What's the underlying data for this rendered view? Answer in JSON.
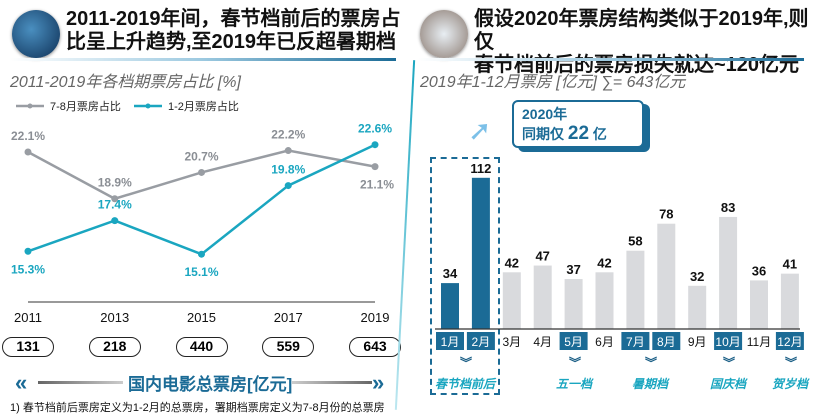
{
  "left": {
    "title_line1": "2011-2019年间，春节档前后的票房占",
    "title_line2": "比呈上升趋势,至2019年已反超暑期档",
    "subtitle": "2011-2019年各档期票房占比 [%]",
    "box_office_label": "国内电影总票房[亿元]",
    "box_office": [
      "131",
      "218",
      "440",
      "559",
      "643"
    ],
    "footnote": "1) 春节档前后票房定义为1-2月的总票房，署期档票房定义为7-8月份的总票房"
  },
  "right": {
    "title_line1": "假设2020年票房结构类似于2019年,则仅",
    "title_line2": "春节档前后的票房损失就达~120亿元",
    "subtitle": "2019年1-12月票房 [亿元] ∑= 643亿元",
    "callout_line1": "2020年",
    "callout_prefix": "同期仅",
    "callout_value": "22",
    "callout_unit": "亿",
    "seasons": [
      "春节档前后",
      "五一档",
      "暑期档",
      "国庆档",
      "贺岁档"
    ]
  },
  "colors": {
    "gray_series": "#999da3",
    "teal_series": "#1aa6c0",
    "dark_blue": "#1b6b96",
    "bar_gray": "#d9dadd"
  },
  "chart_data": [
    {
      "type": "line",
      "title": "2011-2019年各档期票房占比 [%]",
      "x": [
        "2011",
        "2013",
        "2015",
        "2017",
        "2019"
      ],
      "series": [
        {
          "name": "7-8月票房占比",
          "values": [
            22.1,
            18.9,
            20.7,
            22.2,
            21.1
          ],
          "labels": [
            "22.1%",
            "18.9%",
            "20.7%",
            "22.2%",
            "21.1%"
          ]
        },
        {
          "name": "1-2月票房占比",
          "values": [
            15.3,
            17.4,
            15.1,
            19.8,
            22.6
          ],
          "labels": [
            "15.3%",
            "17.4%",
            "15.1%",
            "19.8%",
            "22.6%"
          ]
        }
      ],
      "legend": "top-left"
    },
    {
      "type": "bar",
      "title": "2019年1-12月票房 [亿元] ∑= 643亿元",
      "categories": [
        "1月",
        "2月",
        "3月",
        "4月",
        "5月",
        "6月",
        "7月",
        "8月",
        "9月",
        "10月",
        "11月",
        "12月"
      ],
      "values": [
        34,
        112,
        42,
        47,
        37,
        42,
        58,
        78,
        32,
        83,
        36,
        41
      ],
      "highlighted": [
        "1月",
        "2月"
      ],
      "tagged": [
        "1月",
        "2月",
        "5月",
        "7月",
        "8月",
        "10月",
        "12月"
      ]
    }
  ]
}
